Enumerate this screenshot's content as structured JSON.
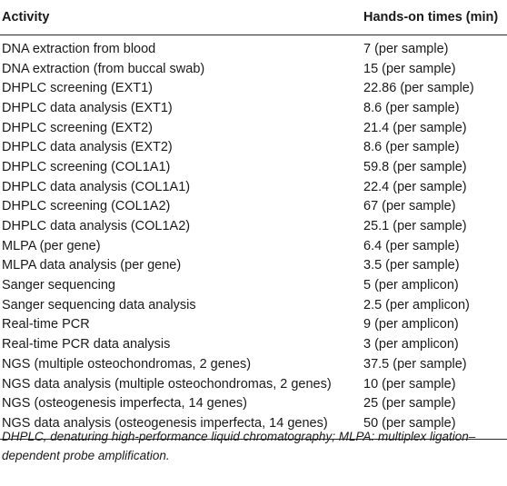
{
  "table": {
    "headers": [
      "Activity",
      "Hands-on times (min)"
    ],
    "rows": [
      [
        "DNA extraction from blood",
        "7 (per sample)"
      ],
      [
        "DNA extraction (from buccal swab)",
        "15 (per sample)"
      ],
      [
        "DHPLC screening (EXT1)",
        "22.86 (per sample)"
      ],
      [
        "DHPLC data analysis (EXT1)",
        "8.6 (per sample)"
      ],
      [
        "DHPLC screening (EXT2)",
        "21.4 (per sample)"
      ],
      [
        "DHPLC data analysis (EXT2)",
        "8.6 (per sample)"
      ],
      [
        "DHPLC screening (COL1A1)",
        "59.8 (per sample)"
      ],
      [
        "DHPLC data analysis (COL1A1)",
        "22.4 (per sample)"
      ],
      [
        "DHPLC screening (COL1A2)",
        "67 (per sample)"
      ],
      [
        "DHPLC data analysis (COL1A2)",
        "25.1 (per sample)"
      ],
      [
        "MLPA (per gene)",
        "6.4 (per sample)"
      ],
      [
        "MLPA data analysis (per gene)",
        "3.5 (per sample)"
      ],
      [
        "Sanger sequencing",
        "5 (per amplicon)"
      ],
      [
        "Sanger sequencing data analysis",
        "2.5 (per amplicon)"
      ],
      [
        "Real-time PCR",
        "9 (per amplicon)"
      ],
      [
        "Real-time PCR data analysis",
        "3 (per amplicon)"
      ],
      [
        "NGS (multiple osteochondromas, 2 genes)",
        "37.5 (per sample)"
      ],
      [
        "NGS data analysis (multiple osteochondromas, 2 genes)",
        "10 (per sample)"
      ],
      [
        "NGS (osteogenesis imperfecta, 14 genes)",
        "25 (per sample)"
      ],
      [
        "NGS data analysis (osteogenesis imperfecta, 14 genes)",
        "50 (per sample)"
      ]
    ]
  },
  "footnote": "DHPLC, denaturing high-performance liquid chromatography; MLPA: multiplex ligation–dependent probe amplification."
}
